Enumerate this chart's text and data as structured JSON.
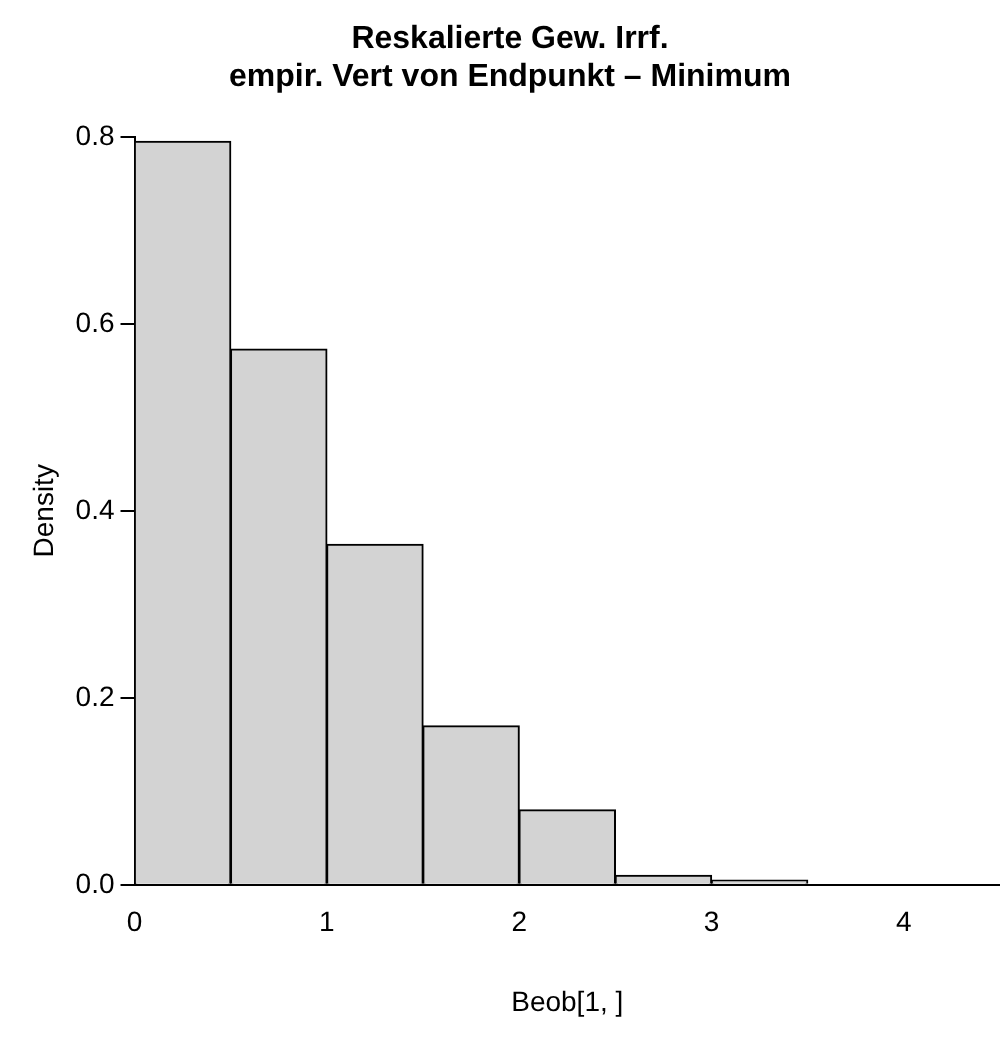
{
  "chart_data": {
    "type": "histogram",
    "title": "Reskalierte Gew. Irrf.\nempir. Vert von Endpunkt – Minimum",
    "xlabel": "Beob[1, ]",
    "ylabel": "Density",
    "bins": [
      0,
      0.5,
      1,
      1.5,
      2,
      2.5,
      3,
      3.5,
      4,
      4.5
    ],
    "values": [
      0.795,
      0.573,
      0.364,
      0.17,
      0.08,
      0.01,
      0.005,
      null,
      null
    ],
    "color": "#d3d3d3",
    "xlim": [
      0,
      4.5
    ],
    "xticks": [
      0,
      1,
      2,
      3,
      4
    ],
    "ylim": [
      0,
      0.8
    ],
    "yticks": [
      {
        "value": 0,
        "label": "0.0"
      },
      {
        "value": 0.2,
        "label": "0.2"
      },
      {
        "value": 0.4,
        "label": "0.4"
      },
      {
        "value": 0.6,
        "label": "0.6"
      },
      {
        "value": 0.8,
        "label": "0.8"
      }
    ],
    "grid": false,
    "legend": false
  }
}
